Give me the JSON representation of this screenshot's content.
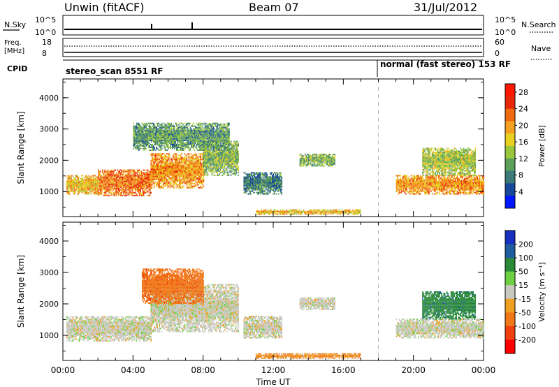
{
  "header": {
    "station": "Unwin (fitACF)",
    "beam": "Beam 07",
    "date": "31/Jul/2012"
  },
  "summary": {
    "nsky_label": "N.Sky",
    "nsearch_label": "N.Search",
    "nsky_ticks": [
      "10^5",
      "10^0"
    ],
    "nsearch_ticks": [
      "10^5",
      "10^0"
    ],
    "freq_label_line1": "Freq.",
    "freq_label_line2": "[MHz]",
    "freq_ticks": [
      "18",
      "8"
    ],
    "nave_label": "Nave",
    "nave_ticks": [
      "60",
      "0"
    ],
    "cpid_label": "CPID",
    "cpid_programs": [
      {
        "text": "stereo_scan 8551 RF"
      },
      {
        "text": "normal (fast stereo) 153 RF"
      }
    ]
  },
  "colors": {
    "power_scale": [
      "#0018ff",
      "#18489a",
      "#3c7a7a",
      "#5aa05a",
      "#9ac83c",
      "#e8d020",
      "#f4a020",
      "#f06a10",
      "#e82808",
      "#ff1800"
    ],
    "velocity_scale": [
      "#1830c0",
      "#205ca0",
      "#2a8a3a",
      "#6cd040",
      "#c8c8c0",
      "#f0a020",
      "#f07818",
      "#f04010",
      "#ff0000"
    ],
    "gray_ground": "#c8c8c0"
  },
  "chart_data": [
    {
      "type": "heatmap",
      "panel": "power",
      "ylabel": "Slant Range [km]",
      "ylim": [
        200,
        4600
      ],
      "yticks": [
        "1000",
        "2000",
        "3000",
        "4000"
      ],
      "xlim_hours": [
        0,
        24
      ],
      "colorbar_label": "Power [dB]",
      "colorbar_ticks": [
        "4",
        "8",
        "12",
        "16",
        "20",
        "24",
        "28"
      ],
      "colorbar_range": [
        0,
        30
      ],
      "regions": [
        {
          "t": [
            0.2,
            2.0
          ],
          "range": [
            900,
            1500
          ],
          "level": 18
        },
        {
          "t": [
            2.0,
            5.0
          ],
          "range": [
            850,
            1700
          ],
          "level": 22
        },
        {
          "t": [
            5.0,
            8.0
          ],
          "range": [
            1100,
            2200
          ],
          "level": 20
        },
        {
          "t": [
            8.0,
            10.0
          ],
          "range": [
            1500,
            2600
          ],
          "level": 12
        },
        {
          "t": [
            4.0,
            9.5
          ],
          "range": [
            2300,
            3200
          ],
          "level": 10
        },
        {
          "t": [
            10.3,
            12.5
          ],
          "range": [
            900,
            1600
          ],
          "level": 8
        },
        {
          "t": [
            13.5,
            15.5
          ],
          "range": [
            1800,
            2200
          ],
          "level": 12
        },
        {
          "t": [
            19.0,
            24.0
          ],
          "range": [
            900,
            1500
          ],
          "level": 20
        },
        {
          "t": [
            20.5,
            23.5
          ],
          "range": [
            1500,
            2400
          ],
          "level": 14
        },
        {
          "t": [
            11.0,
            17.0
          ],
          "range": [
            250,
            400
          ],
          "level": 18
        }
      ]
    },
    {
      "type": "heatmap",
      "panel": "velocity",
      "ylabel": "Slant Range [km]",
      "ylim": [
        200,
        4600
      ],
      "yticks": [
        "1000",
        "2000",
        "3000",
        "4000"
      ],
      "xlim_hours": [
        0,
        24
      ],
      "xticks": [
        "00:00",
        "04:00",
        "08:00",
        "12:00",
        "16:00",
        "20:00",
        "00:00"
      ],
      "xlabel": "Time UT",
      "colorbar_label": "Velocity [m s⁻¹]",
      "colorbar_ticks": [
        "200",
        "100",
        "50",
        "15",
        "-15",
        "-50",
        "-100",
        "-200"
      ],
      "regions": [
        {
          "t": [
            0.2,
            5.0
          ],
          "range": [
            800,
            1600
          ],
          "velocity": 0
        },
        {
          "t": [
            5.0,
            10.0
          ],
          "range": [
            1100,
            2600
          ],
          "velocity": 0
        },
        {
          "t": [
            4.5,
            8.0
          ],
          "range": [
            2000,
            3100
          ],
          "velocity": -60
        },
        {
          "t": [
            10.3,
            12.5
          ],
          "range": [
            900,
            1600
          ],
          "velocity": 0
        },
        {
          "t": [
            13.5,
            15.5
          ],
          "range": [
            1800,
            2200
          ],
          "velocity": 0
        },
        {
          "t": [
            19.0,
            24.0
          ],
          "range": [
            900,
            1500
          ],
          "velocity": 0
        },
        {
          "t": [
            20.5,
            23.5
          ],
          "range": [
            1500,
            2400
          ],
          "velocity": 60
        },
        {
          "t": [
            11.0,
            17.0
          ],
          "range": [
            250,
            400
          ],
          "velocity": -30
        }
      ]
    }
  ]
}
